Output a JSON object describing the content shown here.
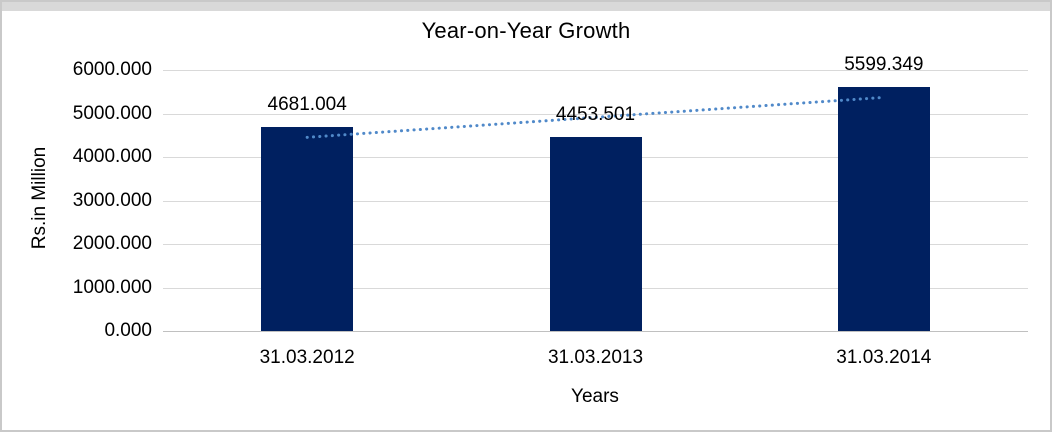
{
  "chart_data": {
    "type": "bar",
    "title": "Year-on-Year Growth",
    "xlabel": "Years",
    "ylabel": "Rs.in Million",
    "categories": [
      "31.03.2012",
      "31.03.2013",
      "31.03.2014"
    ],
    "values": [
      4681.004,
      4453.501,
      5599.349
    ],
    "data_labels": [
      "4681.004",
      "4453.501",
      "5599.349"
    ],
    "ylim": [
      0,
      6000
    ],
    "ytick_interval": 1000,
    "ytick_labels": [
      "6000.000",
      "5000.000",
      "4000.000",
      "3000.000",
      "2000.000",
      "1000.000",
      "0.000"
    ],
    "grid": true,
    "legend": "none",
    "trendline": {
      "type": "linear",
      "style": "dotted"
    },
    "colors": {
      "bar": "#002060",
      "trendline": "#5089c9",
      "gridline": "#d9d9d9",
      "axis_line": "#c0c0c0",
      "text": "#000000",
      "frame_border": "#c9c9c9",
      "top_strip": "#d9d9d9",
      "background": "#ffffff"
    }
  }
}
